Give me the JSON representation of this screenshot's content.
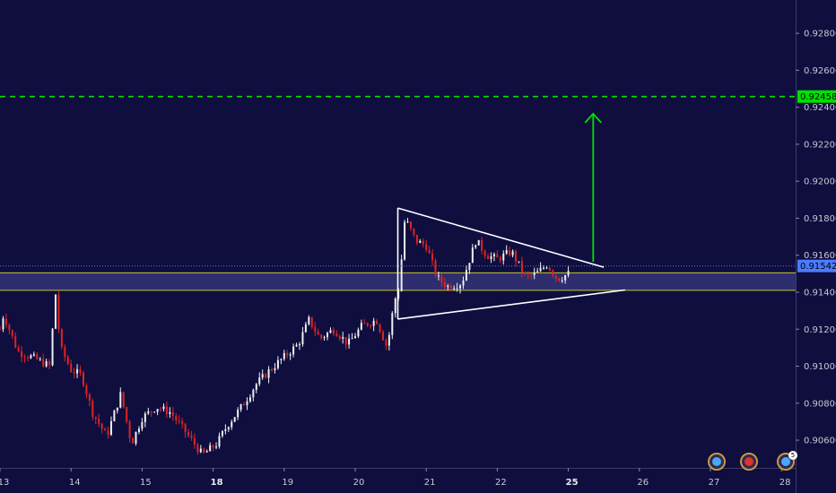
{
  "chart_data": {
    "type": "candlestick",
    "ylim": [
      0.9045,
      0.9298
    ],
    "y_ticks": [
      "0.92800",
      "0.92600",
      "0.92400",
      "0.92200",
      "0.92000",
      "0.91800",
      "0.91600",
      "0.91400",
      "0.91200",
      "0.91000",
      "0.90800",
      "0.90600"
    ],
    "x_ticks": [
      {
        "label": "13",
        "bold": false
      },
      {
        "label": "14",
        "bold": false
      },
      {
        "label": "15",
        "bold": false
      },
      {
        "label": "18",
        "bold": true
      },
      {
        "label": "19",
        "bold": false
      },
      {
        "label": "20",
        "bold": false
      },
      {
        "label": "21",
        "bold": false
      },
      {
        "label": "22",
        "bold": false
      },
      {
        "label": "25",
        "bold": true
      },
      {
        "label": "26",
        "bold": false
      },
      {
        "label": "27",
        "bold": false
      },
      {
        "label": "28",
        "bold": false
      }
    ],
    "x_start": 0,
    "x_end": 11.2,
    "path_points": [
      [
        0.0,
        0.912
      ],
      [
        0.05,
        0.9128
      ],
      [
        0.25,
        0.9108
      ],
      [
        0.5,
        0.9104
      ],
      [
        0.7,
        0.91
      ],
      [
        0.78,
        0.914
      ],
      [
        0.85,
        0.911
      ],
      [
        1.0,
        0.9098
      ],
      [
        1.15,
        0.9095
      ],
      [
        1.3,
        0.9075
      ],
      [
        1.5,
        0.9062
      ],
      [
        1.7,
        0.9085
      ],
      [
        1.85,
        0.9058
      ],
      [
        2.0,
        0.9072
      ],
      [
        2.2,
        0.9078
      ],
      [
        2.4,
        0.9075
      ],
      [
        2.6,
        0.9065
      ],
      [
        2.85,
        0.9052
      ],
      [
        3.05,
        0.9058
      ],
      [
        3.2,
        0.9068
      ],
      [
        3.4,
        0.9078
      ],
      [
        3.6,
        0.909
      ],
      [
        3.8,
        0.9098
      ],
      [
        4.0,
        0.9105
      ],
      [
        4.2,
        0.9112
      ],
      [
        4.35,
        0.9125
      ],
      [
        4.5,
        0.9115
      ],
      [
        4.7,
        0.912
      ],
      [
        4.9,
        0.9112
      ],
      [
        5.1,
        0.9122
      ],
      [
        5.3,
        0.9125
      ],
      [
        5.45,
        0.911
      ],
      [
        5.55,
        0.9135
      ],
      [
        5.62,
        0.9143
      ],
      [
        5.7,
        0.918
      ],
      [
        5.85,
        0.9168
      ],
      [
        6.0,
        0.9165
      ],
      [
        6.15,
        0.9148
      ],
      [
        6.3,
        0.9143
      ],
      [
        6.5,
        0.9145
      ],
      [
        6.7,
        0.9168
      ],
      [
        6.85,
        0.916
      ],
      [
        7.0,
        0.9158
      ],
      [
        7.2,
        0.9162
      ],
      [
        7.4,
        0.9148
      ],
      [
        7.55,
        0.915
      ],
      [
        7.7,
        0.9155
      ],
      [
        7.85,
        0.9147
      ],
      [
        8.0,
        0.915
      ]
    ],
    "support_zone": {
      "from": 0.9141,
      "to": 0.91505
    },
    "current_price": {
      "value": 0.91542,
      "label": "0.91542",
      "color": "#4b7bff"
    },
    "target": {
      "value": 0.92458,
      "label": "0.92458",
      "color": "#00e000"
    },
    "triangle": {
      "left": {
        "x": 5.6,
        "y": 0.91855
      },
      "upper_end": {
        "x": 8.5,
        "y": 0.91535
      },
      "bottom_left": {
        "x": 5.6,
        "y": 0.91255
      },
      "lower_end": {
        "x": 8.8,
        "y": 0.91412
      },
      "color": "#ffffff"
    },
    "projection_arrow": {
      "x": 8.35,
      "from": 0.91565,
      "to": 0.92365,
      "color": "#00e000"
    },
    "colors": {
      "background": "#0f0e3f",
      "up": "#f0f0f0",
      "down": "#e02323",
      "zone": "#2e2d6e",
      "zone_border": "#c6c626"
    }
  },
  "event_icons": [
    {
      "name": "globe-event",
      "color": "#4aa6ff"
    },
    {
      "name": "canada-flag-event",
      "color": "#e03030"
    },
    {
      "name": "multiple-events",
      "count": "5",
      "color": "#4aa6ff"
    }
  ]
}
